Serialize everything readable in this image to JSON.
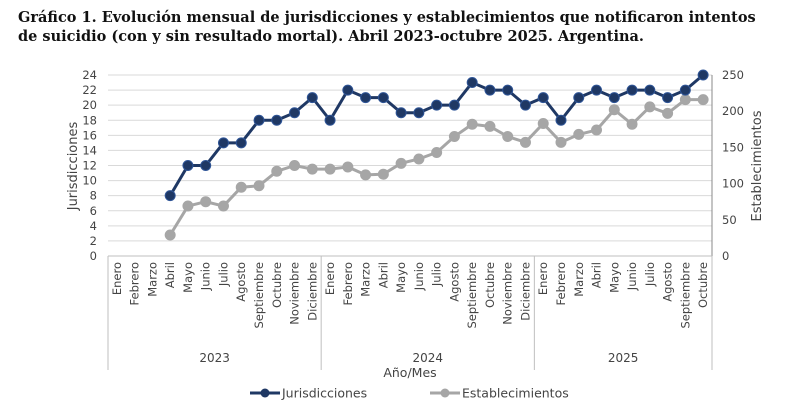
{
  "title": "Gráfico 1. Evolución mensual de jurisdicciones y establecimientos que notificaron intentos de suicidio (con y sin resultado mortal). Abril 2023-octubre 2025. Argentina.",
  "chart_data": {
    "type": "line",
    "xlabel": "Año/Mes",
    "ylabel_left": "Jurisdicciones",
    "ylabel_right": "Establecimientos",
    "ylim_left": [
      0,
      24
    ],
    "yticks_left": [
      0,
      2,
      4,
      6,
      8,
      10,
      12,
      14,
      16,
      18,
      20,
      22,
      24
    ],
    "ylim_right": [
      0,
      250
    ],
    "yticks_right": [
      0,
      50,
      100,
      150,
      200,
      250
    ],
    "grid": true,
    "legend_position": "bottom",
    "years": [
      {
        "label": "2023",
        "months": [
          "Enero",
          "Febrero",
          "Marzo",
          "Abril",
          "Mayo",
          "Junio",
          "Julio",
          "Agosto",
          "Septiembre",
          "Octubre",
          "Noviembre",
          "Diciembre"
        ]
      },
      {
        "label": "2024",
        "months": [
          "Enero",
          "Febrero",
          "Marzo",
          "Abril",
          "Mayo",
          "Junio",
          "Julio",
          "Agosto",
          "Septiembre",
          "Octubre",
          "Noviembre",
          "Diciembre"
        ]
      },
      {
        "label": "2025",
        "months": [
          "Enero",
          "Febrero",
          "Marzo",
          "Abril",
          "Mayo",
          "Junio",
          "Julio",
          "Agosto",
          "Septiembre",
          "Octubre"
        ]
      }
    ],
    "series": [
      {
        "name": "Jurisdicciones",
        "axis": "left",
        "color": "#1f3864",
        "values": [
          null,
          null,
          null,
          8,
          12,
          12,
          15,
          15,
          18,
          18,
          19,
          21,
          18,
          22,
          21,
          21,
          19,
          19,
          20,
          20,
          23,
          22,
          22,
          20,
          21,
          18,
          21,
          22,
          21,
          22,
          22,
          21,
          22,
          24
        ]
      },
      {
        "name": "Establecimientos",
        "axis": "right",
        "color": "#a6a6a6",
        "values": [
          null,
          null,
          null,
          29,
          69,
          75,
          69,
          95,
          97,
          117,
          125,
          120,
          120,
          123,
          112,
          113,
          128,
          134,
          143,
          165,
          182,
          179,
          165,
          157,
          183,
          157,
          168,
          174,
          202,
          182,
          206,
          197,
          216,
          216
        ]
      }
    ]
  }
}
